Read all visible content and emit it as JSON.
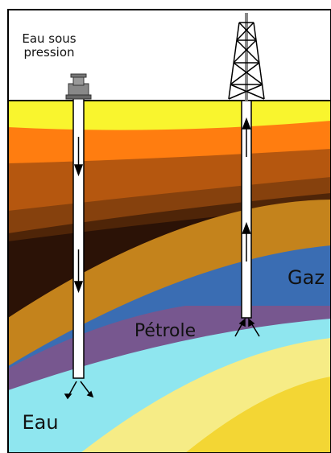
{
  "injection": {
    "lines": [
      "Eau sous",
      "pression"
    ]
  },
  "layers": {
    "gas": "Gaz",
    "oil": "Pétrole",
    "water": "Eau"
  }
}
